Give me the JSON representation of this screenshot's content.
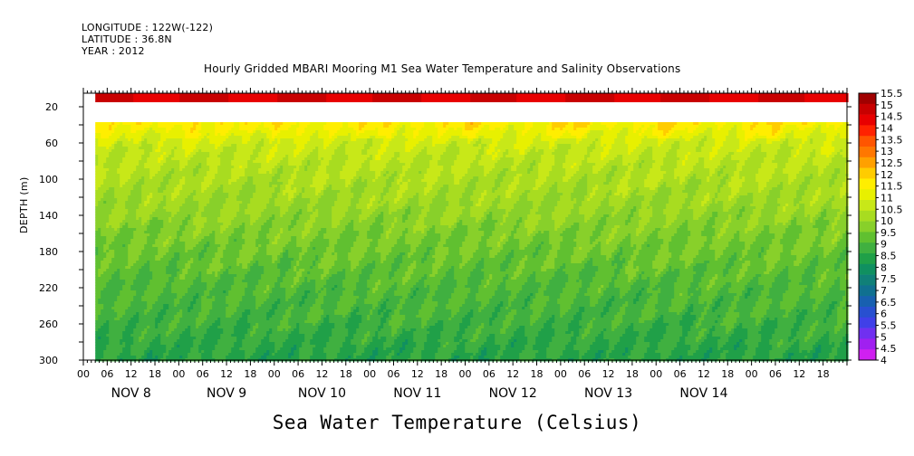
{
  "header": {
    "longitude": "LONGITUDE : 122W(-122)",
    "latitude": "LATITUDE : 36.8N",
    "year": "YEAR : 2012"
  },
  "chart_data": {
    "type": "heatmap",
    "title": "Hourly Gridded MBARI Mooring M1 Sea Water Temperature and Salinity Observations",
    "ylabel": "DEPTH (m)",
    "footer": "Sea Water Temperature (Celsius)",
    "x_hour_ticks": [
      "00",
      "06",
      "12",
      "18",
      "00",
      "06",
      "12",
      "18",
      "00",
      "06",
      "12",
      "18",
      "00",
      "06",
      "12",
      "18",
      "00",
      "06",
      "12",
      "18",
      "00",
      "06",
      "12",
      "18",
      "00",
      "06",
      "12",
      "18",
      "00",
      "06",
      "12",
      "18"
    ],
    "x_day_labels": [
      "NOV  8",
      "NOV  9",
      "NOV 10",
      "NOV 11",
      "NOV 12",
      "NOV 13",
      "NOV 14"
    ],
    "y_tick_labels": [
      "20",
      "60",
      "100",
      "140",
      "180",
      "220",
      "260",
      "300"
    ],
    "y_ticks": [
      20,
      60,
      100,
      140,
      180,
      220,
      260,
      300
    ],
    "ylim": [
      300,
      5
    ],
    "time_range_hours": [
      0,
      192
    ],
    "data_start_hour": 3,
    "near_surface_depth_range": [
      5,
      15
    ],
    "missing_depth_range": [
      15,
      37
    ],
    "data_depth_range": [
      37,
      300
    ],
    "depth_profile": [
      {
        "depth": 5,
        "temp": 14.8
      },
      {
        "depth": 15,
        "temp": 14.6
      },
      {
        "depth": 37,
        "temp": 11.6
      },
      {
        "depth": 50,
        "temp": 11.1
      },
      {
        "depth": 60,
        "temp": 10.8
      },
      {
        "depth": 80,
        "temp": 10.5
      },
      {
        "depth": 100,
        "temp": 10.3
      },
      {
        "depth": 130,
        "temp": 10.0
      },
      {
        "depth": 160,
        "temp": 9.6
      },
      {
        "depth": 190,
        "temp": 9.3
      },
      {
        "depth": 220,
        "temp": 9.0
      },
      {
        "depth": 250,
        "temp": 8.8
      },
      {
        "depth": 280,
        "temp": 8.5
      },
      {
        "depth": 300,
        "temp": 8.3
      }
    ],
    "colorbar": {
      "labels": [
        "15.5",
        "15",
        "14.5",
        "14",
        "13.5",
        "13",
        "12.5",
        "12",
        "11.5",
        "11",
        "10.5",
        "10",
        "9.5",
        "9",
        "8.5",
        "8",
        "7.5",
        "7",
        "6.5",
        "6",
        "5.5",
        "5",
        "4.5",
        "4"
      ],
      "levels": [
        15.5,
        15,
        14.5,
        14,
        13.5,
        13,
        12.5,
        12,
        11.5,
        11,
        10.5,
        10,
        9.5,
        9,
        8.5,
        8,
        7.5,
        7,
        6.5,
        6,
        5.5,
        5,
        4.5,
        4
      ],
      "colors": [
        "#a00000",
        "#c80000",
        "#e80000",
        "#ff2200",
        "#ff5500",
        "#ff7700",
        "#ffa000",
        "#ffcc00",
        "#ffee00",
        "#e8f000",
        "#c8e818",
        "#a8dc20",
        "#88d02a",
        "#60c030",
        "#40b040",
        "#20a048",
        "#109060",
        "#108078",
        "#107090",
        "#1860b0",
        "#2850d0",
        "#4040e8",
        "#7030f0",
        "#a020f0",
        "#d020f0"
      ]
    }
  }
}
